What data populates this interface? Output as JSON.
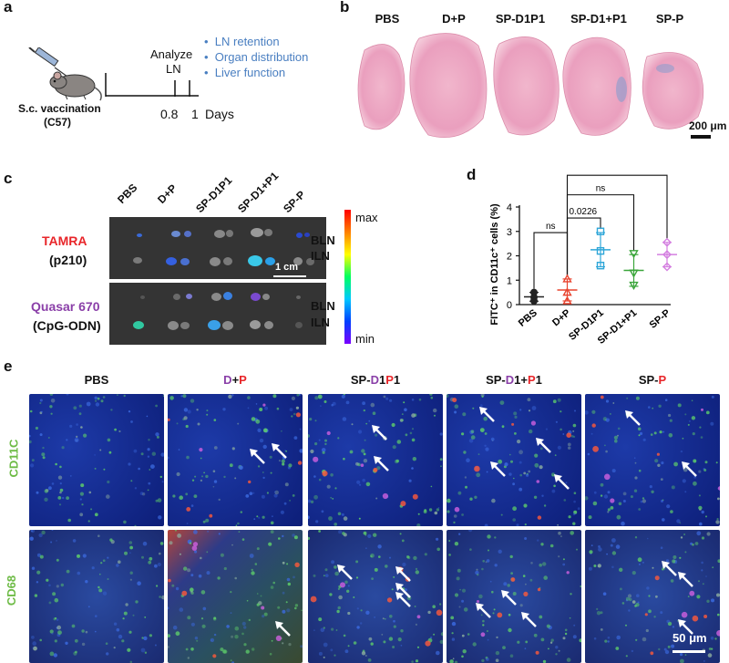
{
  "panels": {
    "a": "a",
    "b": "b",
    "c": "c",
    "d": "d",
    "e": "e"
  },
  "panel_a": {
    "caption_line1": "S.c. vaccination",
    "caption_line2": "(C57)",
    "analyze_line1": "Analyze",
    "analyze_line2": "LN",
    "tick1": "0.8",
    "tick2": "1",
    "unit": "Days",
    "bullets": [
      "LN retention",
      "Organ distribution",
      "Liver function"
    ]
  },
  "panel_b": {
    "groups": [
      "PBS",
      "D+P",
      "SP-D1P1",
      "SP-D1+P1",
      "SP-P"
    ],
    "scale_bar": "200 μm"
  },
  "panel_c": {
    "groups": [
      "PBS",
      "D+P",
      "SP-D1P1",
      "SP-D1+P1",
      "SP-P"
    ],
    "dye1_name": "TAMRA",
    "dye1_target": "(p210)",
    "dye2_name": "Quasar 670",
    "dye2_target": "(CpG-ODN)",
    "node_labels": [
      "BLN",
      "ILN"
    ],
    "scale_bar": "1 cm",
    "colorbar_max": "max",
    "colorbar_min": "min",
    "colors": {
      "dye1": "#e8262a",
      "dye2": "#8a3fa8"
    }
  },
  "chart_data": {
    "type": "scatter",
    "ylabel": "FITC⁺ in CD11c⁺ cells (%)",
    "ylim": [
      0,
      4
    ],
    "yticks": [
      0,
      1,
      2,
      3,
      4
    ],
    "categories": [
      "PBS",
      "D+P",
      "SP-D1P1",
      "SP-D1+P1",
      "SP-P"
    ],
    "series": [
      {
        "values": [
          0.5,
          0.3,
          0.15
        ],
        "mean": 0.32,
        "sd": 0.18,
        "marker": "circle",
        "color": "#222222"
      },
      {
        "values": [
          1.05,
          0.5,
          0.15
        ],
        "mean": 0.6,
        "sd": 0.45,
        "marker": "triangle-up",
        "color": "#e8432e"
      },
      {
        "values": [
          3.0,
          2.2,
          1.6
        ],
        "mean": 2.25,
        "sd": 0.7,
        "marker": "square",
        "color": "#2ea6d8"
      },
      {
        "values": [
          2.1,
          1.3,
          0.8
        ],
        "mean": 1.4,
        "sd": 0.65,
        "marker": "triangle-down",
        "color": "#3aa53a"
      },
      {
        "values": [
          2.55,
          2.05,
          1.55
        ],
        "mean": 2.05,
        "sd": 0.5,
        "marker": "diamond",
        "color": "#d47fe0"
      }
    ],
    "comparisons": [
      {
        "from": "PBS",
        "to": "D+P",
        "label": "ns"
      },
      {
        "from": "D+P",
        "to": "SP-D1P1",
        "label": "0.0226"
      },
      {
        "from": "D+P",
        "to": "SP-D1+P1",
        "label": "ns"
      },
      {
        "from": "D+P",
        "to": "SP-P",
        "label": "ns"
      }
    ]
  },
  "panel_e": {
    "headers": [
      {
        "parts": [
          {
            "t": "PBS",
            "c": "#111111"
          }
        ]
      },
      {
        "parts": [
          {
            "t": "D",
            "c": "#8a3fa8"
          },
          {
            "t": "+",
            "c": "#111111"
          },
          {
            "t": "P",
            "c": "#e8262a"
          }
        ]
      },
      {
        "parts": [
          {
            "t": "SP-",
            "c": "#111111"
          },
          {
            "t": "D",
            "c": "#8a3fa8"
          },
          {
            "t": "1",
            "c": "#111111"
          },
          {
            "t": "P",
            "c": "#e8262a"
          },
          {
            "t": "1",
            "c": "#111111"
          }
        ]
      },
      {
        "parts": [
          {
            "t": "SP-",
            "c": "#111111"
          },
          {
            "t": "D",
            "c": "#8a3fa8"
          },
          {
            "t": "1+",
            "c": "#111111"
          },
          {
            "t": "P",
            "c": "#e8262a"
          },
          {
            "t": "1",
            "c": "#111111"
          }
        ]
      },
      {
        "parts": [
          {
            "t": "SP-",
            "c": "#111111"
          },
          {
            "t": "P",
            "c": "#e8262a"
          }
        ]
      }
    ],
    "row_labels": [
      "CD11C",
      "CD68"
    ],
    "scale_bar": "50 μm",
    "row_label_color": "#6dbb45"
  }
}
